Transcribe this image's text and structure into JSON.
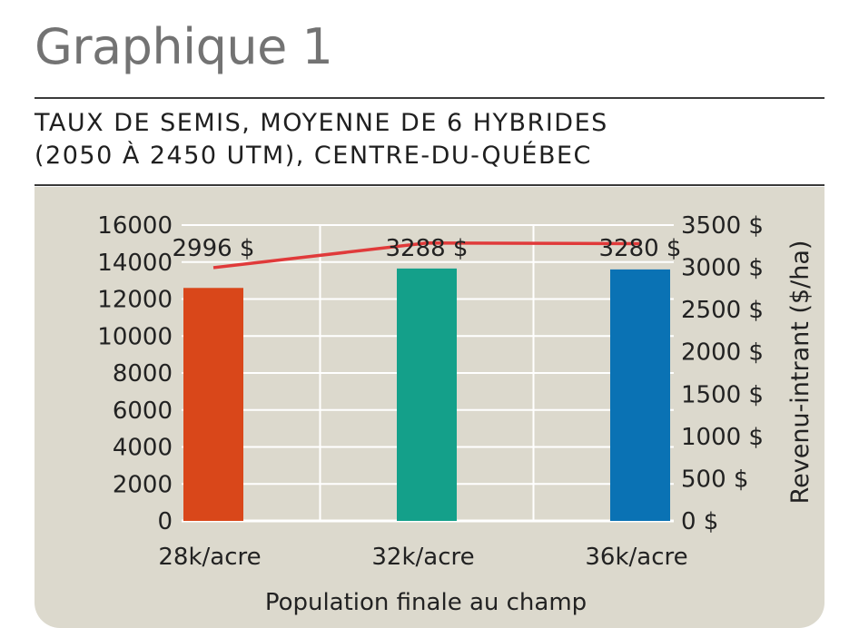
{
  "heading": "Graphique 1",
  "subtitle_lines": [
    "TAUX DE SEMIS, MOYENNE DE 6 HYBRIDES",
    "(2050 À 2450 UTM), CENTRE-DU-QUÉBEC"
  ],
  "colors": {
    "panel": "#dcd9cd",
    "line": "#e03a3a",
    "bars": [
      "#d9471a",
      "#14a08a",
      "#0a72b4"
    ]
  },
  "chart_data": {
    "type": "bar",
    "categories": [
      "28k/acre",
      "32k/acre",
      "36k/acre"
    ],
    "xlabel": "Population finale au champ",
    "left_axis": {
      "ylim": [
        0,
        16000
      ],
      "ticks": [
        0,
        2000,
        4000,
        6000,
        8000,
        10000,
        12000,
        14000,
        16000
      ],
      "tick_labels": [
        "0",
        "2000",
        "4000",
        "6000",
        "8000",
        "10000",
        "12000",
        "14000",
        "16000"
      ]
    },
    "right_axis": {
      "label": "Revenu-intrant ($/ha)",
      "ylim": [
        0,
        3500
      ],
      "ticks": [
        0,
        500,
        1000,
        1500,
        2000,
        2500,
        3000,
        3500
      ],
      "tick_labels": [
        "0 $",
        "500 $",
        "1000 $",
        "1500 $",
        "2000 $",
        "2500 $",
        "3000 $",
        "3500 $"
      ]
    },
    "series": [
      {
        "type": "bar",
        "axis": "left",
        "values": [
          12600,
          13650,
          13600
        ]
      },
      {
        "type": "line",
        "axis": "right",
        "values": [
          2996,
          3288,
          3280
        ],
        "data_labels": [
          "2996 $",
          "3288 $",
          "3280 $"
        ]
      }
    ],
    "grid": true
  }
}
